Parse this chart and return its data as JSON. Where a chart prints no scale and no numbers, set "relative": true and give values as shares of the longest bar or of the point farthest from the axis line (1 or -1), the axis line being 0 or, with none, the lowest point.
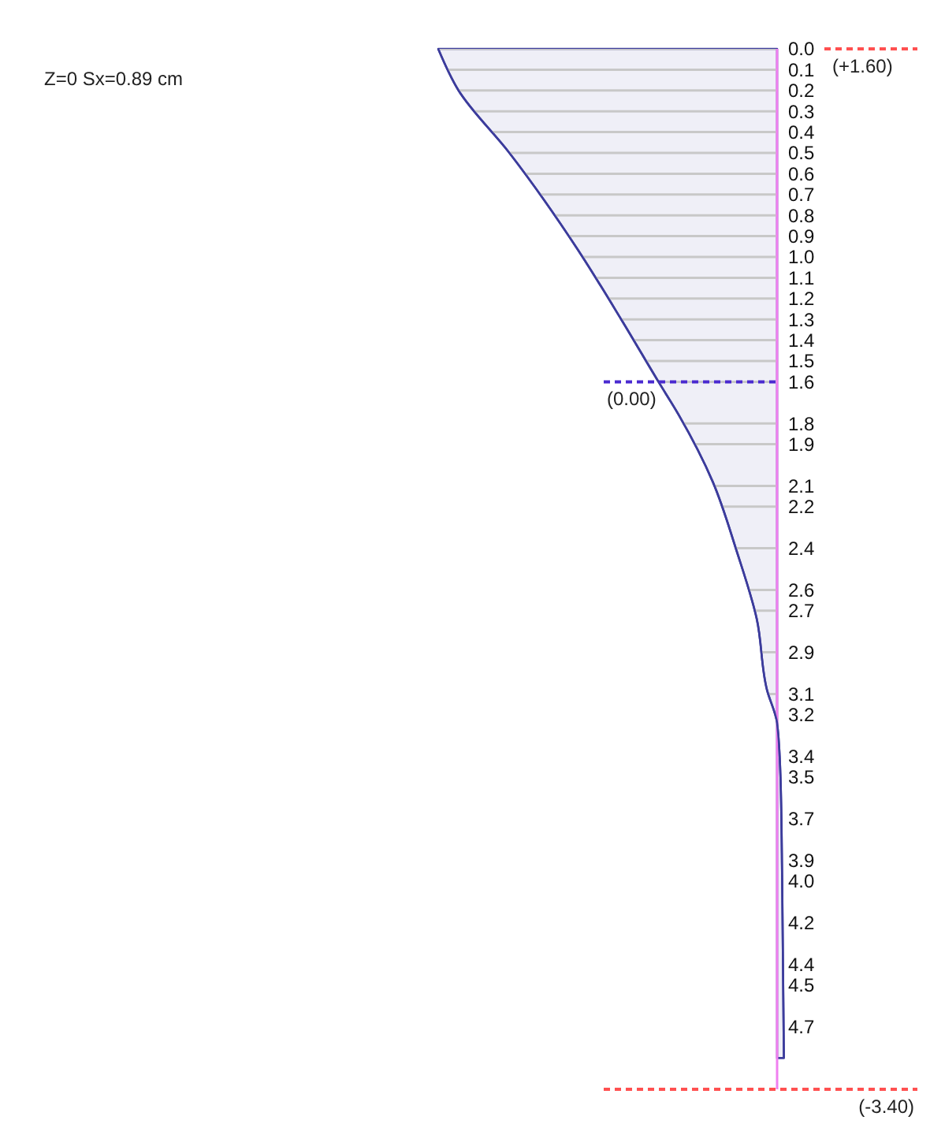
{
  "chart_data": {
    "type": "area",
    "orientation": "horizontal",
    "relative": true,
    "grid": "y",
    "line_style": "solid",
    "marker": "none",
    "y2lim": [
      -3.4,
      1.6
    ],
    "annotations": [
      "Z=0 Sx=0.89 cm"
    ],
    "ylim": [
      5.0,
      0
    ],
    "yticks": [
      {
        "value": 0,
        "label": "0.0"
      },
      {
        "value": 0.1,
        "label": "0.1"
      },
      {
        "value": 0.2,
        "label": "0.2"
      },
      {
        "value": 0.3,
        "label": "0.3"
      },
      {
        "value": 0.4,
        "label": "0.4"
      },
      {
        "value": 0.5,
        "label": "0.5"
      },
      {
        "value": 0.6,
        "label": "0.6"
      },
      {
        "value": 0.7,
        "label": "0.7"
      },
      {
        "value": 0.8,
        "label": "0.8"
      },
      {
        "value": 0.9,
        "label": "0.9"
      },
      {
        "value": 1.0,
        "label": "1.0"
      },
      {
        "value": 1.1,
        "label": "1.1"
      },
      {
        "value": 1.2,
        "label": "1.2"
      },
      {
        "value": 1.3,
        "label": "1.3"
      },
      {
        "value": 1.4,
        "label": "1.4"
      },
      {
        "value": 1.5,
        "label": "1.5"
      },
      {
        "value": 1.6,
        "label": "1.6"
      },
      {
        "value": 1.8,
        "label": "1.8"
      },
      {
        "value": 1.9,
        "label": "1.9"
      },
      {
        "value": 2.1,
        "label": "2.1"
      },
      {
        "value": 2.2,
        "label": "2.2"
      },
      {
        "value": 2.4,
        "label": "2.4"
      },
      {
        "value": 2.6,
        "label": "2.6"
      },
      {
        "value": 2.7,
        "label": "2.7"
      },
      {
        "value": 2.9,
        "label": "2.9"
      },
      {
        "value": 3.1,
        "label": "3.1"
      },
      {
        "value": 3.2,
        "label": "3.2"
      },
      {
        "value": 3.4,
        "label": "3.4"
      },
      {
        "value": 3.5,
        "label": "3.5"
      },
      {
        "value": 3.7,
        "label": "3.7"
      },
      {
        "value": 3.9,
        "label": "3.9"
      },
      {
        "value": 4.0,
        "label": "4.0"
      },
      {
        "value": 4.2,
        "label": "4.2"
      },
      {
        "value": 4.4,
        "label": "4.4"
      },
      {
        "value": 4.5,
        "label": "4.5"
      },
      {
        "value": 4.7,
        "label": "4.7"
      }
    ],
    "series": [
      {
        "color": "#3c3c9c",
        "x": [
          0,
          0.2,
          0.5,
          0.96,
          1.3,
          1.6,
          1.76,
          2.08,
          2.41,
          2.74,
          3.08,
          3.24,
          3.5,
          4.0,
          4.85
        ],
        "values": [
          -1,
          -0.94,
          -0.79,
          -0.59,
          -0.46,
          -0.35,
          -0.29,
          -0.19,
          -0.12,
          -0.06,
          -0.03,
          0,
          0.01,
          0.015,
          0.02
        ]
      }
    ],
    "ref_lines": [
      {
        "axis": "y2",
        "value": 1.6,
        "label": "(+1.60)",
        "color": "#ff5050",
        "line_style": "dashed"
      },
      {
        "axis": "y2",
        "value": 0,
        "label": "(0.00)",
        "color": "#4a2ad0",
        "line_style": "dashed"
      },
      {
        "axis": "y2",
        "value": -3.4,
        "label": "(-3.40)",
        "color": "#ff5050",
        "line_style": "dashed"
      }
    ]
  }
}
